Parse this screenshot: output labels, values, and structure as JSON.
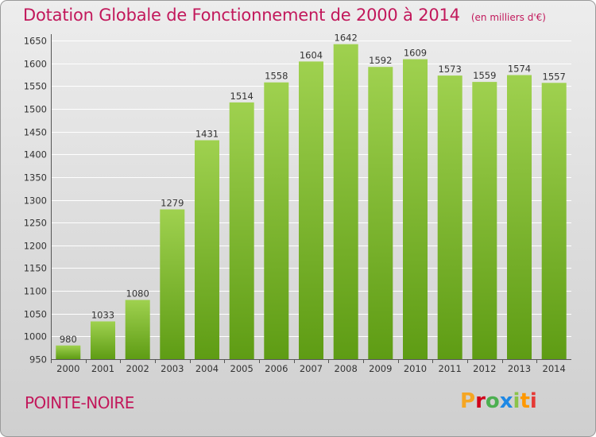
{
  "header": {
    "title": "Dotation Globale de Fonctionnement de 2000 à 2014",
    "unit": "(en milliers d'€)"
  },
  "footer": {
    "place": "POINTE-NOIRE",
    "brand": "Proxiti",
    "brand_colors": [
      "#f5a623",
      "#d0021b",
      "#4caf50",
      "#1e88e5",
      "#8bc34a",
      "#ff9800",
      "#e53935"
    ]
  },
  "colors": {
    "title": "#c2185b",
    "bar_light": "#9fd14f",
    "bar_dark": "#5e9c14",
    "grid": "#ffffff"
  },
  "chart_data": {
    "type": "bar",
    "title": "Dotation Globale de Fonctionnement de 2000 à 2014",
    "subtitle": "(en milliers d'€)",
    "xlabel": "",
    "ylabel": "",
    "categories": [
      "2000",
      "2001",
      "2002",
      "2003",
      "2004",
      "2005",
      "2006",
      "2007",
      "2008",
      "2009",
      "2010",
      "2011",
      "2012",
      "2013",
      "2014"
    ],
    "values": [
      980,
      1033,
      1080,
      1279,
      1431,
      1514,
      1558,
      1604,
      1642,
      1592,
      1609,
      1573,
      1559,
      1574,
      1557
    ],
    "ylim": [
      950,
      1650
    ],
    "yticks": [
      950,
      1000,
      1050,
      1100,
      1150,
      1200,
      1250,
      1300,
      1350,
      1400,
      1450,
      1500,
      1550,
      1600,
      1650
    ],
    "grid": true,
    "legend": "none"
  }
}
